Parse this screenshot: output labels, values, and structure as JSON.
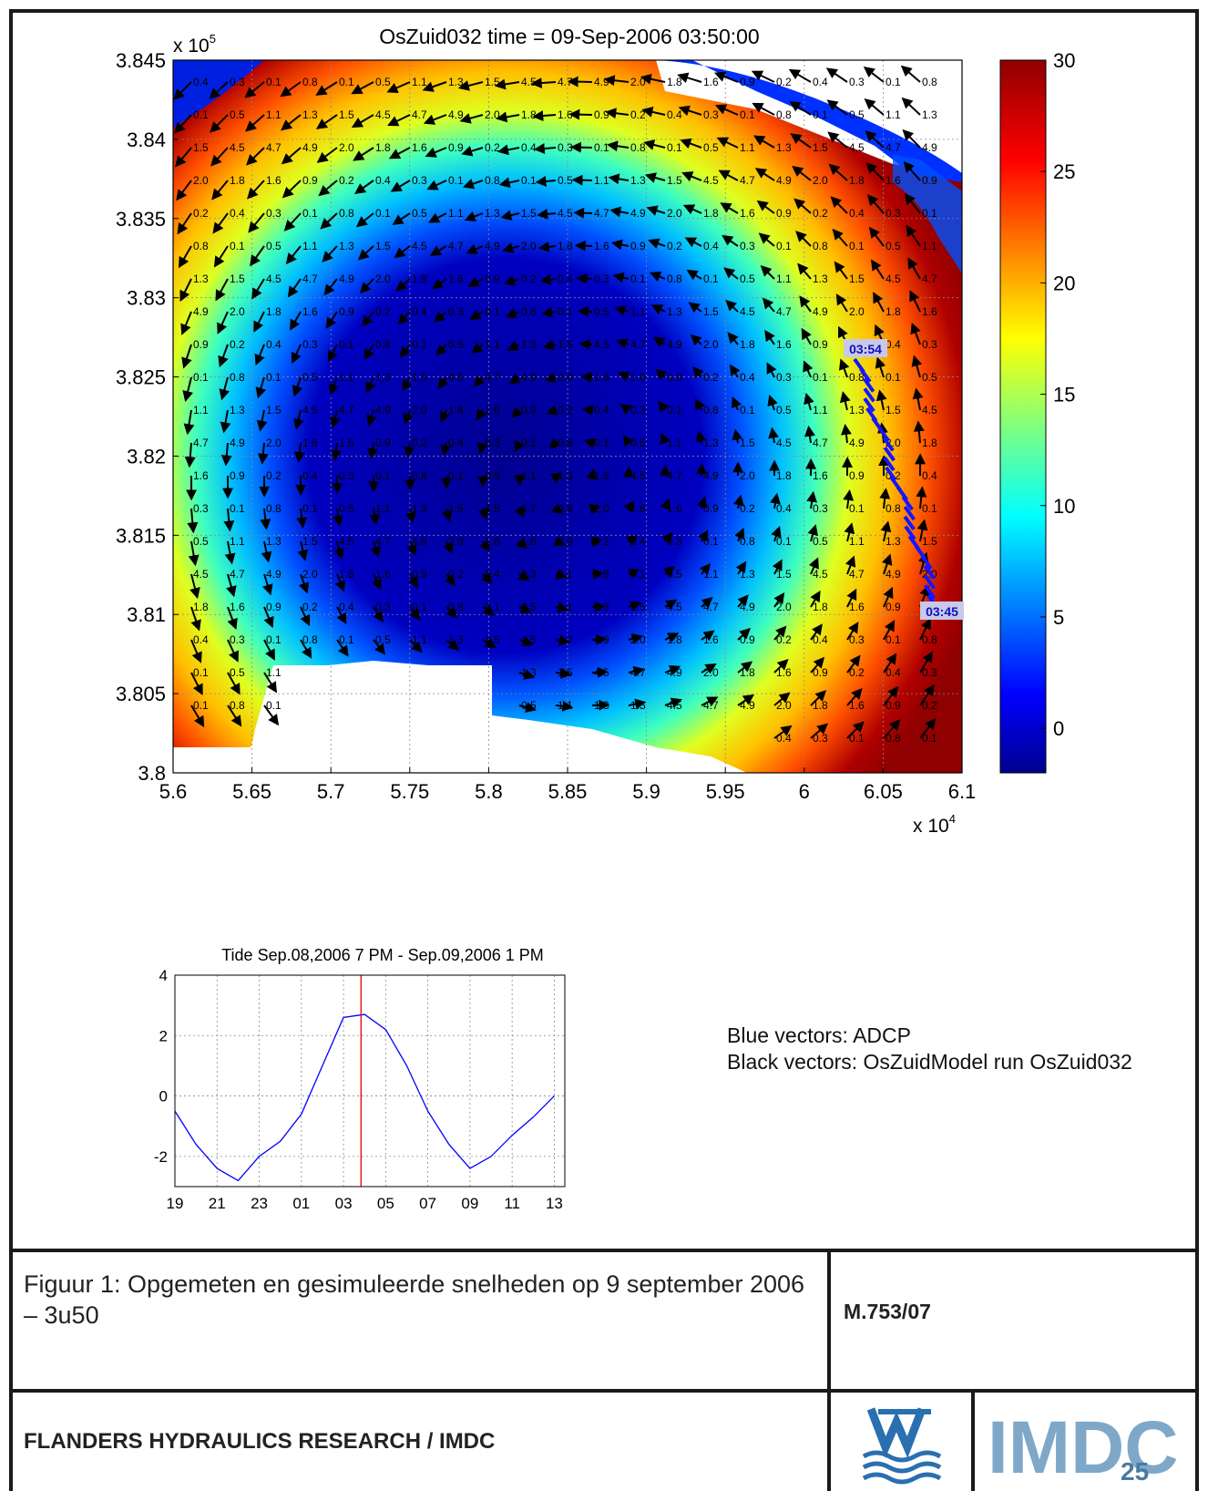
{
  "map": {
    "title": "OsZuid032  time = 09-Sep-2006 03:50:00",
    "x_ticks": [
      "5.6",
      "5.65",
      "5.7",
      "5.75",
      "5.8",
      "5.85",
      "5.9",
      "5.95",
      "6",
      "6.05",
      "6.1"
    ],
    "y_ticks": [
      "3.845",
      "3.84",
      "3.835",
      "3.83",
      "3.825",
      "3.82",
      "3.815",
      "3.81",
      "3.805",
      "3.8"
    ],
    "x_exponent_base": "x 10",
    "x_exponent_power": "4",
    "y_exponent_base": "x 10",
    "y_exponent_power": "5",
    "colorbar_ticks": [
      "30",
      "25",
      "20",
      "15",
      "10",
      "5",
      "0"
    ],
    "adcp_label_start": "03:54",
    "adcp_label_end": "03:45"
  },
  "chart_data": [
    {
      "type": "heatmap",
      "title": "OsZuid032  time = 09-Sep-2006 03:50:00",
      "xlim": [
        56000,
        61000
      ],
      "ylim": [
        380000,
        384500
      ],
      "color_range": [
        -2,
        30
      ],
      "colormap": "jet",
      "x_ticks": [
        56000,
        56500,
        57000,
        57500,
        58000,
        58500,
        59000,
        59500,
        60000,
        60500,
        61000
      ],
      "y_ticks": [
        380000,
        380500,
        381000,
        381500,
        382000,
        382500,
        383000,
        383500,
        384000,
        384500
      ],
      "colorbar_ticks": [
        0,
        5,
        10,
        15,
        20,
        25,
        30
      ],
      "series": [
        {
          "name": "Black vectors: OsZuidModel run OsZuid032"
        },
        {
          "name": "Blue vectors: ADCP",
          "start_label": "03:54",
          "end_label": "03:45"
        }
      ],
      "sample_vector_labels": [
        "0.4",
        "0.3",
        "0.1",
        "0.8",
        "0.1",
        "0.5",
        "1.1",
        "1.3",
        "1.5",
        "4.5",
        "4.7",
        "4.9",
        "2.0",
        "1.8",
        "1.6",
        "0.9",
        "0.2"
      ]
    },
    {
      "type": "line",
      "title": "Tide Sep.08,2006  7 PM - Sep.09,2006  1 PM",
      "x_tick_labels": [
        "19",
        "21",
        "23",
        "01",
        "03",
        "05",
        "07",
        "09",
        "11",
        "13"
      ],
      "ylim": [
        -3,
        4
      ],
      "y_ticks": [
        -2,
        0,
        2,
        4
      ],
      "current_time_marker_hours": 8.83,
      "series": [
        {
          "color": "#0000ff",
          "x_hours": [
            0,
            1,
            2,
            3,
            4,
            5,
            6,
            7,
            8,
            9,
            10,
            11,
            12,
            13,
            14,
            15,
            16,
            17,
            18
          ],
          "values": [
            -0.5,
            -1.6,
            -2.4,
            -2.8,
            -2.0,
            -1.5,
            -0.6,
            1.0,
            2.6,
            2.7,
            2.2,
            1.0,
            -0.5,
            -1.6,
            -2.4,
            -2.0,
            -1.3,
            -0.7,
            0.0
          ]
        }
      ]
    }
  ],
  "legend": {
    "line1": "Blue vectors: ADCP",
    "line2": "Black vectors: OsZuidModel run OsZuid032"
  },
  "caption": "Figuur 1: Opgemeten en gesimuleerde snelheden op 9 september 2006 – 3u50",
  "reference": "M.753/07",
  "footer": "FLANDERS HYDRAULICS RESEARCH / IMDC",
  "logos": {
    "left": "waterbouwkundig-laboratorium-logo",
    "right": "IMDC",
    "right_sub": "25"
  }
}
